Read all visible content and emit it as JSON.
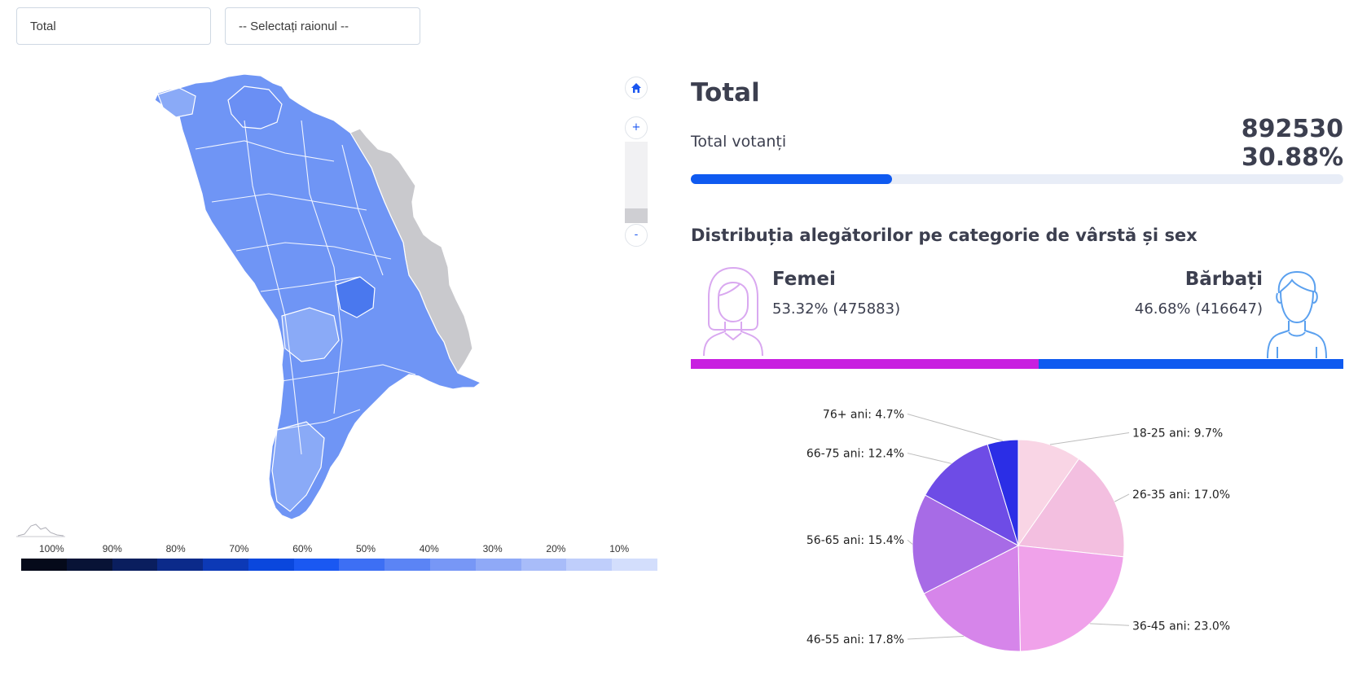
{
  "filters": {
    "category_selected": "Total",
    "district_placeholder": "-- Selectați raionul --"
  },
  "zoom": {
    "in_label": "+",
    "out_label": "-",
    "level": 0.18
  },
  "legend": {
    "ticks": [
      "100%",
      "90%",
      "80%",
      "70%",
      "60%",
      "50%",
      "40%",
      "30%",
      "20%",
      "10%"
    ],
    "colors": [
      "#050a1a",
      "#081336",
      "#0a1e5e",
      "#0b2a8a",
      "#0c39b6",
      "#0a47dd",
      "#1a58f2",
      "#3d6ff4",
      "#5b84f5",
      "#7797f6",
      "#8fa9f7",
      "#a8bcf9",
      "#bfcefb",
      "#d3defc"
    ]
  },
  "map": {
    "fill_main": "#6f95f5",
    "fill_dark": "#4a78ee",
    "fill_light": "#8aaaf7",
    "fill_transnistria": "#c9c9cd"
  },
  "summary": {
    "title": "Total",
    "voters_label": "Total votanți",
    "voters_count": "892530",
    "voters_pct": "30.88%",
    "progress": 30.88
  },
  "distribution": {
    "title": "Distribuția alegătorilor pe categorie de vârstă și sex",
    "female": {
      "label": "Femei",
      "value": "53.32% (475883)",
      "share": 53.32,
      "color": "#c81fe0",
      "icon": "woman-avatar-icon"
    },
    "male": {
      "label": "Bărbați",
      "value": "46.68% (416647)",
      "share": 46.68,
      "color": "#0f5af0",
      "icon": "man-avatar-icon"
    }
  },
  "chart_data": {
    "type": "pie",
    "title": "",
    "slices": [
      {
        "label": "18-25 ani: 9.7%",
        "value": 9.7,
        "color": "#f9d5e5"
      },
      {
        "label": "26-35 ani: 17.0%",
        "value": 17.0,
        "color": "#f3bfe0"
      },
      {
        "label": "36-45 ani: 23.0%",
        "value": 23.0,
        "color": "#f0a2ea"
      },
      {
        "label": "46-55 ani: 17.8%",
        "value": 17.8,
        "color": "#d685ea"
      },
      {
        "label": "56-65 ani: 15.4%",
        "value": 15.4,
        "color": "#a76be6"
      },
      {
        "label": "66-75 ani: 12.4%",
        "value": 12.4,
        "color": "#6e4ce6"
      },
      {
        "label": "76+ ani: 4.7%",
        "value": 4.7,
        "color": "#2b2ee6"
      }
    ]
  }
}
